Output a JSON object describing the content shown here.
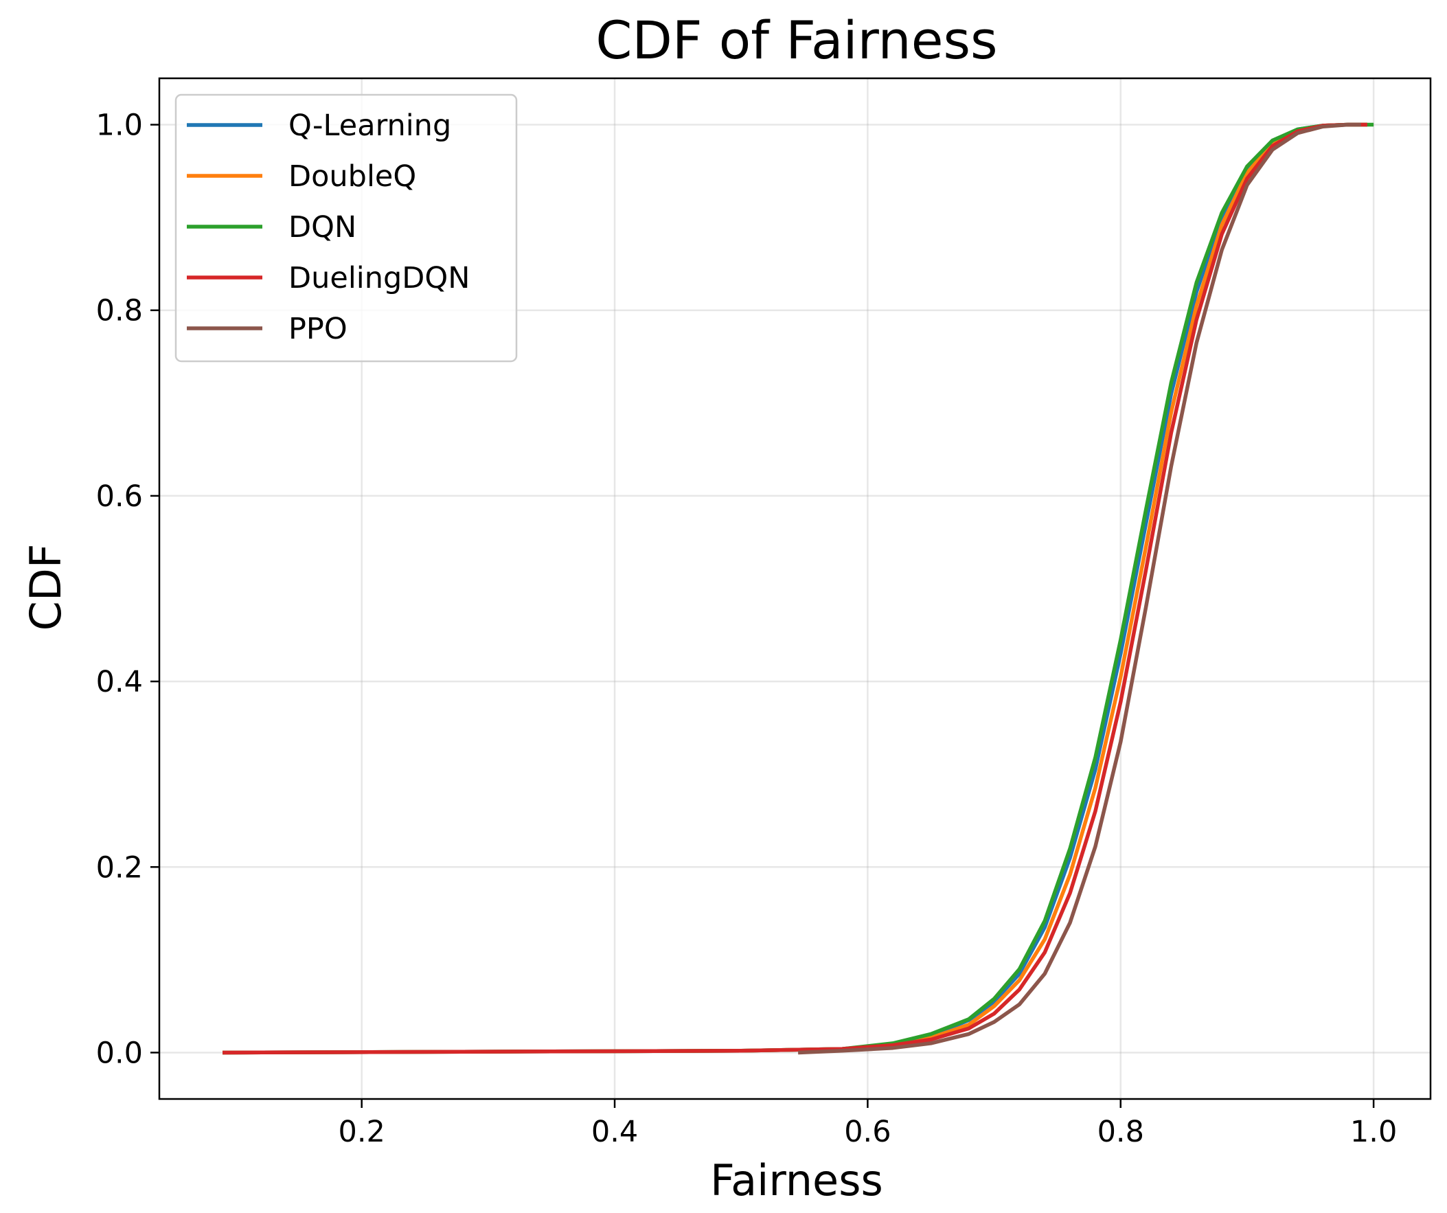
{
  "chart_data": {
    "type": "line",
    "title": "CDF of Fairness",
    "xlabel": "Fairness",
    "ylabel": "CDF",
    "xlim": [
      0.04,
      1.045
    ],
    "ylim": [
      -0.05,
      1.05
    ],
    "xticks": [
      0.2,
      0.4,
      0.6,
      0.8,
      1.0
    ],
    "xtick_labels": [
      "0.2",
      "0.4",
      "0.6",
      "0.8",
      "1.0"
    ],
    "yticks": [
      0.0,
      0.2,
      0.4,
      0.6,
      0.8,
      1.0
    ],
    "ytick_labels": [
      "0.0",
      "0.2",
      "0.4",
      "0.6",
      "0.8",
      "1.0"
    ],
    "grid": true,
    "legend_position": "upper-left",
    "series": [
      {
        "name": "Q-Learning",
        "color": "#1f77b4",
        "x": [
          0.09,
          0.3,
          0.5,
          0.58,
          0.62,
          0.65,
          0.68,
          0.7,
          0.72,
          0.74,
          0.76,
          0.78,
          0.8,
          0.82,
          0.84,
          0.86,
          0.88,
          0.9,
          0.92,
          0.94,
          0.96,
          0.98,
          0.995
        ],
        "y": [
          0.0,
          0.001,
          0.002,
          0.004,
          0.009,
          0.018,
          0.035,
          0.055,
          0.085,
          0.135,
          0.21,
          0.305,
          0.43,
          0.57,
          0.71,
          0.82,
          0.9,
          0.952,
          0.982,
          0.995,
          0.999,
          1.0,
          1.0
        ]
      },
      {
        "name": "DoubleQ",
        "color": "#ff7f0e",
        "x": [
          0.09,
          0.3,
          0.5,
          0.58,
          0.62,
          0.65,
          0.68,
          0.7,
          0.72,
          0.74,
          0.76,
          0.78,
          0.8,
          0.82,
          0.84,
          0.86,
          0.88,
          0.9,
          0.92,
          0.94,
          0.96,
          0.98,
          0.995
        ],
        "y": [
          0.0,
          0.001,
          0.002,
          0.004,
          0.008,
          0.016,
          0.03,
          0.05,
          0.078,
          0.122,
          0.192,
          0.285,
          0.405,
          0.545,
          0.69,
          0.805,
          0.892,
          0.948,
          0.98,
          0.994,
          0.999,
          1.0,
          1.0
        ]
      },
      {
        "name": "DQN",
        "color": "#2ca02c",
        "x": [
          0.09,
          0.3,
          0.5,
          0.58,
          0.62,
          0.65,
          0.68,
          0.7,
          0.72,
          0.74,
          0.76,
          0.78,
          0.8,
          0.82,
          0.84,
          0.86,
          0.88,
          0.9,
          0.92,
          0.94,
          0.96,
          0.98,
          1.0
        ],
        "y": [
          0.0,
          0.001,
          0.002,
          0.004,
          0.01,
          0.02,
          0.036,
          0.058,
          0.09,
          0.142,
          0.22,
          0.318,
          0.445,
          0.585,
          0.722,
          0.83,
          0.905,
          0.955,
          0.983,
          0.995,
          0.999,
          1.0,
          1.0
        ]
      },
      {
        "name": "DuelingDQN",
        "color": "#d62728",
        "x": [
          0.09,
          0.3,
          0.5,
          0.58,
          0.62,
          0.65,
          0.68,
          0.7,
          0.72,
          0.74,
          0.76,
          0.78,
          0.8,
          0.82,
          0.84,
          0.86,
          0.88,
          0.9,
          0.92,
          0.94,
          0.96,
          0.98,
          0.995
        ],
        "y": [
          0.0,
          0.001,
          0.002,
          0.004,
          0.008,
          0.014,
          0.026,
          0.042,
          0.068,
          0.108,
          0.172,
          0.26,
          0.378,
          0.52,
          0.668,
          0.79,
          0.882,
          0.942,
          0.977,
          0.993,
          0.999,
          1.0,
          1.0
        ]
      },
      {
        "name": "PPO",
        "color": "#8c564b",
        "x": [
          0.545,
          0.58,
          0.62,
          0.65,
          0.68,
          0.7,
          0.72,
          0.74,
          0.76,
          0.78,
          0.8,
          0.82,
          0.84,
          0.86,
          0.88,
          0.9,
          0.92,
          0.94,
          0.96,
          0.98,
          0.99
        ],
        "y": [
          0.0,
          0.002,
          0.005,
          0.01,
          0.02,
          0.033,
          0.052,
          0.085,
          0.14,
          0.222,
          0.335,
          0.48,
          0.632,
          0.765,
          0.865,
          0.935,
          0.973,
          0.991,
          0.998,
          1.0,
          1.0
        ]
      }
    ]
  }
}
